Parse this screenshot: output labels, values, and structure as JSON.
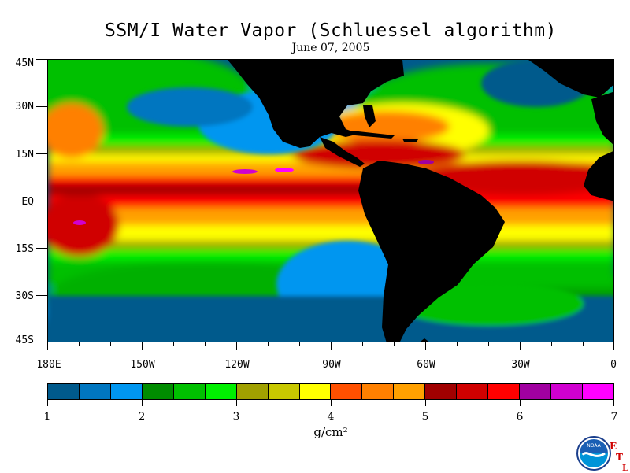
{
  "title": "SSM/I Water Vapor (Schluessel algorithm)",
  "subtitle": "June 07, 2005",
  "map": {
    "lat_labels": [
      "45N",
      "30N",
      "15N",
      "EQ",
      "15S",
      "30S",
      "45S"
    ],
    "lon_labels": [
      "180E",
      "150W",
      "120W",
      "90W",
      "60W",
      "30W",
      "0"
    ],
    "land_color": "#000000"
  },
  "colorbar": {
    "colors": [
      "#005a8c",
      "#0076c0",
      "#0096f0",
      "#008c00",
      "#00c000",
      "#00f000",
      "#a0a000",
      "#c8c800",
      "#ffff00",
      "#ff5000",
      "#ff8000",
      "#ffa000",
      "#a00000",
      "#d00000",
      "#ff0000",
      "#a000a0",
      "#d000d0",
      "#ff00ff"
    ],
    "tick_labels": [
      "1",
      "2",
      "3",
      "4",
      "5",
      "6",
      "7"
    ],
    "units": "g/cm²"
  },
  "logo": {
    "name": "NOAA",
    "etl": [
      "E",
      "T",
      "L"
    ]
  }
}
